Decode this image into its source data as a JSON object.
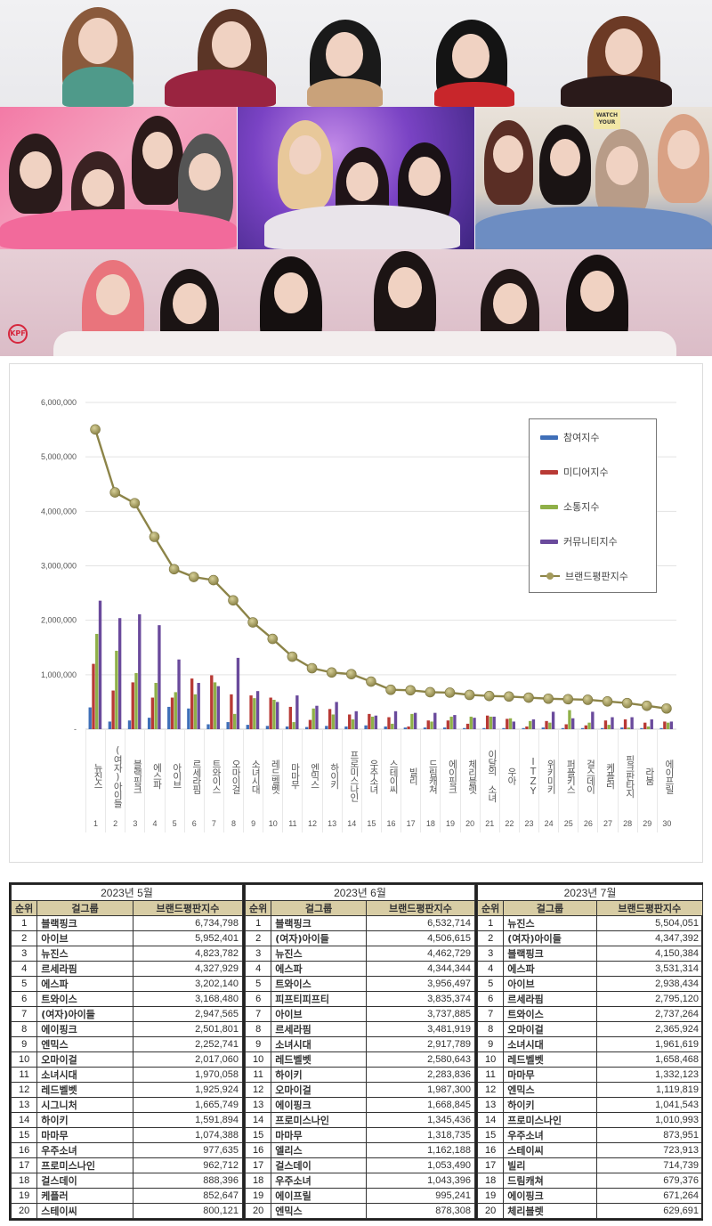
{
  "photos": {
    "top_panel": "girl-group-5-members-photo",
    "mid_panels": [
      "girl-group-pink-background-photo",
      "girl-group-purple-stage-photo",
      "girl-group-cafe-photo"
    ],
    "mid3_sign": "WATCH YOUR",
    "bottom_panel": "girl-group-6-members-photo",
    "logo_text": "KPF"
  },
  "chart_data": {
    "type": "bar+line",
    "title": "",
    "xlabel": "",
    "ylabel": "",
    "ylim": [
      0,
      6000000
    ],
    "y_ticks": [
      "6,000,000",
      "5,000,000",
      "4,000,000",
      "3,000,000",
      "2,000,000",
      "1,000,000",
      "-"
    ],
    "grid": true,
    "legend_position": "upper-right",
    "legend": [
      "참여지수",
      "미디어지수",
      "소통지수",
      "커뮤니티지수",
      "브랜드평판지수"
    ],
    "colors": {
      "participation": "#3f6fb8",
      "media": "#b83a35",
      "communication": "#8fb048",
      "community": "#6a4a9c",
      "brand": "#a49b5c"
    },
    "categories": [
      "뉴진스",
      "(여자)아이들",
      "블랙핑크",
      "에스파",
      "아이브",
      "르세라핌",
      "트와이스",
      "오마이걸",
      "소녀시대",
      "레드벨벳",
      "마마무",
      "엔믹스",
      "하이키",
      "프로미스나인",
      "우주소녀",
      "스테이씨",
      "빌리",
      "드림캐쳐",
      "에이핑크",
      "체리블렛",
      "이달의 소녀",
      "우아",
      "ITZY",
      "위키미키",
      "퍼플키스",
      "걸스데이",
      "케플러",
      "핑크판타지",
      "라붐",
      "에이프릴"
    ],
    "ranks": [
      "1",
      "2",
      "3",
      "4",
      "5",
      "6",
      "7",
      "8",
      "9",
      "10",
      "11",
      "12",
      "13",
      "14",
      "15",
      "16",
      "17",
      "18",
      "19",
      "20",
      "21",
      "22",
      "23",
      "24",
      "25",
      "26",
      "27",
      "28",
      "29",
      "30"
    ],
    "series": [
      {
        "name": "참여지수",
        "type": "bar",
        "values": [
          400000,
          140000,
          160000,
          210000,
          410000,
          380000,
          90000,
          130000,
          80000,
          60000,
          50000,
          40000,
          60000,
          50000,
          70000,
          50000,
          30000,
          30000,
          30000,
          20000,
          20000,
          20000,
          20000,
          30000,
          20000,
          20000,
          20000,
          30000,
          20000,
          20000
        ]
      },
      {
        "name": "미디어지수",
        "type": "bar",
        "values": [
          1200000,
          710000,
          860000,
          580000,
          580000,
          930000,
          990000,
          640000,
          620000,
          580000,
          410000,
          170000,
          370000,
          270000,
          280000,
          220000,
          50000,
          160000,
          160000,
          100000,
          250000,
          190000,
          50000,
          150000,
          90000,
          70000,
          160000,
          180000,
          120000,
          140000
        ]
      },
      {
        "name": "소통지수",
        "type": "bar",
        "values": [
          1750000,
          1440000,
          1030000,
          850000,
          680000,
          640000,
          860000,
          280000,
          570000,
          540000,
          130000,
          380000,
          270000,
          180000,
          230000,
          100000,
          280000,
          140000,
          230000,
          230000,
          230000,
          200000,
          150000,
          120000,
          350000,
          120000,
          80000,
          30000,
          50000,
          120000
        ]
      },
      {
        "name": "커뮤니티지수",
        "type": "bar",
        "values": [
          2360000,
          2040000,
          2110000,
          1910000,
          1280000,
          850000,
          790000,
          1310000,
          700000,
          500000,
          620000,
          430000,
          500000,
          330000,
          250000,
          330000,
          300000,
          300000,
          260000,
          210000,
          230000,
          140000,
          180000,
          320000,
          200000,
          320000,
          220000,
          220000,
          180000,
          140000
        ]
      },
      {
        "name": "브랜드평판지수",
        "type": "line",
        "values": [
          5504051,
          4347392,
          4150384,
          3531314,
          2938434,
          2795120,
          2737264,
          2365924,
          1961619,
          1658468,
          1332123,
          1119819,
          1041543,
          1010993,
          873951,
          723913,
          714739,
          679376,
          671264,
          629691,
          610000,
          600000,
          580000,
          560000,
          550000,
          540000,
          510000,
          480000,
          430000,
          380000
        ]
      }
    ]
  },
  "tables": [
    {
      "month": "2023년 5월",
      "headers": {
        "rank": "순위",
        "group": "걸그룹",
        "score": "브랜드평판지수"
      },
      "rows": [
        {
          "rank": "1",
          "group": "블랙핑크",
          "score": "6,734,798"
        },
        {
          "rank": "2",
          "group": "아이브",
          "score": "5,952,401"
        },
        {
          "rank": "3",
          "group": "뉴진스",
          "score": "4,823,782"
        },
        {
          "rank": "4",
          "group": "르세라핌",
          "score": "4,327,929"
        },
        {
          "rank": "5",
          "group": "에스파",
          "score": "3,202,140"
        },
        {
          "rank": "6",
          "group": "트와이스",
          "score": "3,168,480"
        },
        {
          "rank": "7",
          "group": "(여자)아이들",
          "score": "2,947,565"
        },
        {
          "rank": "8",
          "group": "에이핑크",
          "score": "2,501,801"
        },
        {
          "rank": "9",
          "group": "엔믹스",
          "score": "2,252,741"
        },
        {
          "rank": "10",
          "group": "오마이걸",
          "score": "2,017,060"
        },
        {
          "rank": "11",
          "group": "소녀시대",
          "score": "1,970,058"
        },
        {
          "rank": "12",
          "group": "레드벨벳",
          "score": "1,925,924"
        },
        {
          "rank": "13",
          "group": "시그니처",
          "score": "1,665,749"
        },
        {
          "rank": "14",
          "group": "하이키",
          "score": "1,591,894"
        },
        {
          "rank": "15",
          "group": "마마무",
          "score": "1,074,388"
        },
        {
          "rank": "16",
          "group": "우주소녀",
          "score": "977,635"
        },
        {
          "rank": "17",
          "group": "프로미스나인",
          "score": "962,712"
        },
        {
          "rank": "18",
          "group": "걸스데이",
          "score": "888,396"
        },
        {
          "rank": "19",
          "group": "케플러",
          "score": "852,647"
        },
        {
          "rank": "20",
          "group": "스테이씨",
          "score": "800,121"
        }
      ]
    },
    {
      "month": "2023년 6월",
      "headers": {
        "rank": "순위",
        "group": "걸그룹",
        "score": "브랜드평판지수"
      },
      "rows": [
        {
          "rank": "1",
          "group": "블랙핑크",
          "score": "6,532,714"
        },
        {
          "rank": "2",
          "group": "(여자)아이들",
          "score": "4,506,615"
        },
        {
          "rank": "3",
          "group": "뉴진스",
          "score": "4,462,729"
        },
        {
          "rank": "4",
          "group": "에스파",
          "score": "4,344,344"
        },
        {
          "rank": "5",
          "group": "트와이스",
          "score": "3,956,497"
        },
        {
          "rank": "6",
          "group": "피프티피프티",
          "score": "3,835,374"
        },
        {
          "rank": "7",
          "group": "아이브",
          "score": "3,737,885"
        },
        {
          "rank": "8",
          "group": "르세라핌",
          "score": "3,481,919"
        },
        {
          "rank": "9",
          "group": "소녀시대",
          "score": "2,917,789"
        },
        {
          "rank": "10",
          "group": "레드벨벳",
          "score": "2,580,643"
        },
        {
          "rank": "11",
          "group": "하이키",
          "score": "2,283,836"
        },
        {
          "rank": "12",
          "group": "오마이걸",
          "score": "1,987,300"
        },
        {
          "rank": "13",
          "group": "에이핑크",
          "score": "1,668,845"
        },
        {
          "rank": "14",
          "group": "프로미스나인",
          "score": "1,345,436"
        },
        {
          "rank": "15",
          "group": "마마무",
          "score": "1,318,735"
        },
        {
          "rank": "16",
          "group": "엘리스",
          "score": "1,162,188"
        },
        {
          "rank": "17",
          "group": "걸스데이",
          "score": "1,053,490"
        },
        {
          "rank": "18",
          "group": "우주소녀",
          "score": "1,043,396"
        },
        {
          "rank": "19",
          "group": "에이프릴",
          "score": "995,241"
        },
        {
          "rank": "20",
          "group": "엔믹스",
          "score": "878,308"
        }
      ]
    },
    {
      "month": "2023년 7월",
      "headers": {
        "rank": "순위",
        "group": "걸그룹",
        "score": "브랜드평판지수"
      },
      "rows": [
        {
          "rank": "1",
          "group": "뉴진스",
          "score": "5,504,051"
        },
        {
          "rank": "2",
          "group": "(여자)아이들",
          "score": "4,347,392"
        },
        {
          "rank": "3",
          "group": "블랙핑크",
          "score": "4,150,384"
        },
        {
          "rank": "4",
          "group": "에스파",
          "score": "3,531,314"
        },
        {
          "rank": "5",
          "group": "아이브",
          "score": "2,938,434"
        },
        {
          "rank": "6",
          "group": "르세라핌",
          "score": "2,795,120"
        },
        {
          "rank": "7",
          "group": "트와이스",
          "score": "2,737,264"
        },
        {
          "rank": "8",
          "group": "오마이걸",
          "score": "2,365,924"
        },
        {
          "rank": "9",
          "group": "소녀시대",
          "score": "1,961,619"
        },
        {
          "rank": "10",
          "group": "레드벨벳",
          "score": "1,658,468"
        },
        {
          "rank": "11",
          "group": "마마무",
          "score": "1,332,123"
        },
        {
          "rank": "12",
          "group": "엔믹스",
          "score": "1,119,819"
        },
        {
          "rank": "13",
          "group": "하이키",
          "score": "1,041,543"
        },
        {
          "rank": "14",
          "group": "프로미스나인",
          "score": "1,010,993"
        },
        {
          "rank": "15",
          "group": "우주소녀",
          "score": "873,951"
        },
        {
          "rank": "16",
          "group": "스테이씨",
          "score": "723,913"
        },
        {
          "rank": "17",
          "group": "빌리",
          "score": "714,739"
        },
        {
          "rank": "18",
          "group": "드림캐쳐",
          "score": "679,376"
        },
        {
          "rank": "19",
          "group": "에이핑크",
          "score": "671,264"
        },
        {
          "rank": "20",
          "group": "체리블렛",
          "score": "629,691"
        }
      ]
    }
  ]
}
